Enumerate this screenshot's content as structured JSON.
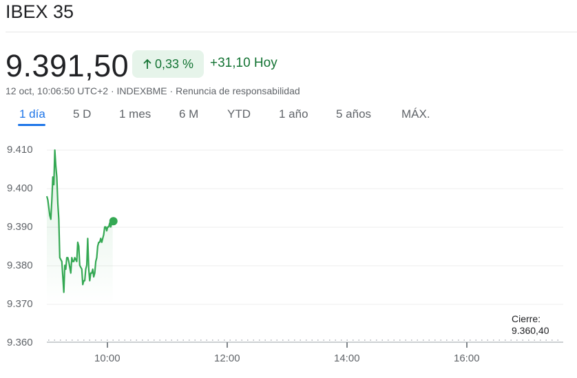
{
  "header": {
    "title": "IBEX 35",
    "price": "9.391,50",
    "change_percent": "0,33 %",
    "change_arrow_icon": "arrow-up-icon",
    "change_absolute": "+31,10 Hoy",
    "timestamp": "12 oct, 10:06:50 UTC+2",
    "separator": "·",
    "exchange": "INDEXBME",
    "disclaimer_link": "Renuncia de responsabilidad"
  },
  "tabs": [
    {
      "label": "1 día",
      "active": true
    },
    {
      "label": "5 D",
      "active": false
    },
    {
      "label": "1 mes",
      "active": false
    },
    {
      "label": "6 M",
      "active": false
    },
    {
      "label": "YTD",
      "active": false
    },
    {
      "label": "1 año",
      "active": false
    },
    {
      "label": "5 años",
      "active": false
    },
    {
      "label": "MÁX.",
      "active": false
    }
  ],
  "colors": {
    "positive": "#137333",
    "positive_bg": "#e6f4ea",
    "line": "#34a853",
    "accent": "#1a73e8"
  },
  "previous_close": {
    "label": "Cierre:",
    "value": "9.360,40"
  },
  "chart_data": {
    "type": "line",
    "title": "IBEX 35",
    "xlabel": "",
    "ylabel": "",
    "y_ticks": [
      "9.410",
      "9.400",
      "9.390",
      "9.380",
      "9.370",
      "9.360"
    ],
    "x_ticks": [
      "10:00",
      "12:00",
      "14:00",
      "16:00"
    ],
    "ylim": [
      9360,
      9412
    ],
    "xlim": [
      "09:00",
      "17:35"
    ],
    "grid": true,
    "legend": "none",
    "reference_line": {
      "label": "Cierre: 9.360,40",
      "value": 9360.4,
      "style": "dotted"
    },
    "series": [
      {
        "name": "IBEX 35",
        "x": [
          "09:00",
          "09:01",
          "09:03",
          "09:04",
          "09:05",
          "09:06",
          "09:07",
          "09:08",
          "09:09",
          "09:10",
          "09:11",
          "09:12",
          "09:13",
          "09:15",
          "09:17",
          "09:18",
          "09:19",
          "09:20",
          "09:21",
          "09:22",
          "09:24",
          "09:25",
          "09:26",
          "09:27",
          "09:28",
          "09:30",
          "09:31",
          "09:32",
          "09:33",
          "09:35",
          "09:36",
          "09:37",
          "09:38",
          "09:39",
          "09:40",
          "09:41",
          "09:42",
          "09:43",
          "09:44",
          "09:45",
          "09:46",
          "09:47",
          "09:48",
          "09:49",
          "09:50",
          "09:51",
          "09:52",
          "09:53",
          "09:54",
          "09:55",
          "09:56",
          "09:57",
          "09:58",
          "09:59",
          "10:00",
          "10:01",
          "10:02",
          "10:03",
          "10:04",
          "10:05",
          "10:06"
        ],
        "values": [
          9398,
          9397,
          9393,
          9392,
          9397,
          9403,
          9401,
          9410,
          9406,
          9403,
          9396,
          9392,
          9382,
          9381,
          9373,
          9380,
          9379,
          9382,
          9382,
          9381,
          9378,
          9382,
          9381,
          9381,
          9382,
          9381,
          9386,
          9385,
          9380,
          9379,
          9375,
          9376,
          9376,
          9379,
          9380,
          9387,
          9379,
          9376,
          9378,
          9378,
          9379,
          9377,
          9378,
          9381,
          9382,
          9385,
          9386,
          9386,
          9387,
          9386,
          9387,
          9388,
          9390,
          9390,
          9389,
          9390,
          9390,
          9391,
          9390,
          9391,
          9391.5
        ]
      }
    ]
  }
}
